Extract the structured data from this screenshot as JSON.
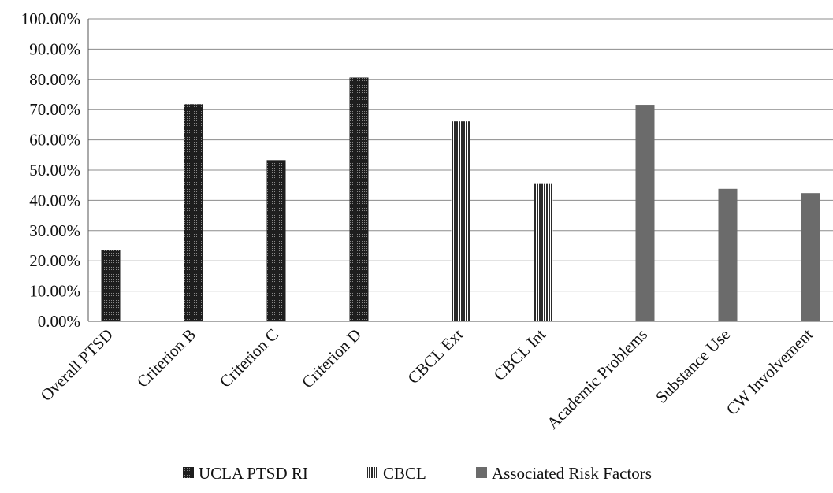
{
  "chart_data": {
    "type": "bar",
    "categories": [
      "Overall PTSD",
      "Criterion B",
      "Criterion C",
      "Criterion D",
      "CBCL Ext",
      "CBCL Int",
      "Academic Problems",
      "Substance Use",
      "CW Involvement"
    ],
    "series": [
      {
        "name": "UCLA PTSD RI",
        "values": [
          23.5,
          71.8,
          53.3,
          80.6,
          null,
          null,
          null,
          null,
          null
        ],
        "pattern": "dots",
        "color": "#1e1e1e"
      },
      {
        "name": "CBCL",
        "values": [
          null,
          null,
          null,
          null,
          66.1,
          45.4,
          null,
          null,
          null
        ],
        "pattern": "vertical-lines",
        "color": "#2a2a2a"
      },
      {
        "name": "Associated Risk Factors",
        "values": [
          null,
          null,
          null,
          null,
          null,
          null,
          71.6,
          43.8,
          42.4
        ],
        "pattern": "solid",
        "color": "#6b6b6b"
      }
    ],
    "yticks": [
      "0.00%",
      "10.00%",
      "20.00%",
      "30.00%",
      "40.00%",
      "50.00%",
      "60.00%",
      "70.00%",
      "80.00%",
      "90.00%",
      "100.00%"
    ],
    "ylim": [
      0,
      100
    ],
    "title": "",
    "xlabel": "",
    "ylabel": "",
    "grid": true,
    "legend_position": "bottom"
  }
}
